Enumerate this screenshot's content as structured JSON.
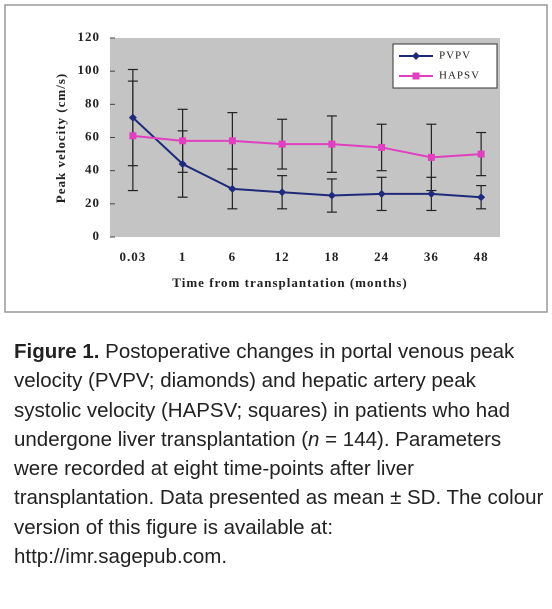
{
  "chart_data": {
    "type": "line",
    "y_label": "Peak velocity (cm/s)",
    "x_label": "Time from transplantation (months)",
    "categories": [
      "0.03",
      "1",
      "6",
      "12",
      "18",
      "24",
      "36",
      "48"
    ],
    "series": [
      {
        "name": "PVPV",
        "color": "#1f2a7a",
        "marker": "diamond",
        "values": [
          72,
          44,
          29,
          27,
          25,
          26,
          26,
          24
        ],
        "errors": [
          29,
          20,
          12,
          10,
          10,
          10,
          10,
          7
        ]
      },
      {
        "name": "HAPSV",
        "color": "#e040c0",
        "marker": "square",
        "values": [
          61,
          58,
          58,
          56,
          56,
          54,
          48,
          50
        ],
        "errors": [
          33,
          19,
          17,
          15,
          17,
          14,
          20,
          13
        ]
      }
    ],
    "ylim": [
      0,
      120
    ],
    "yticks": [
      0,
      20,
      40,
      60,
      80,
      100,
      120
    ],
    "legend": "top-right"
  },
  "caption": {
    "label": "Figure 1.",
    "text_before": "Postoperative changes in portal venous peak velocity (PVPV; diamonds) and hepatic artery peak systolic velocity (HAPSV; squares) in patients who had undergone liver transplantation (",
    "italic": "n",
    "text_after": " = 144). Parameters were recorded at eight time-points after liver transplantation. Data presented as mean ± SD. The colour version of this figure is available at: http://imr.sagepub.com."
  }
}
